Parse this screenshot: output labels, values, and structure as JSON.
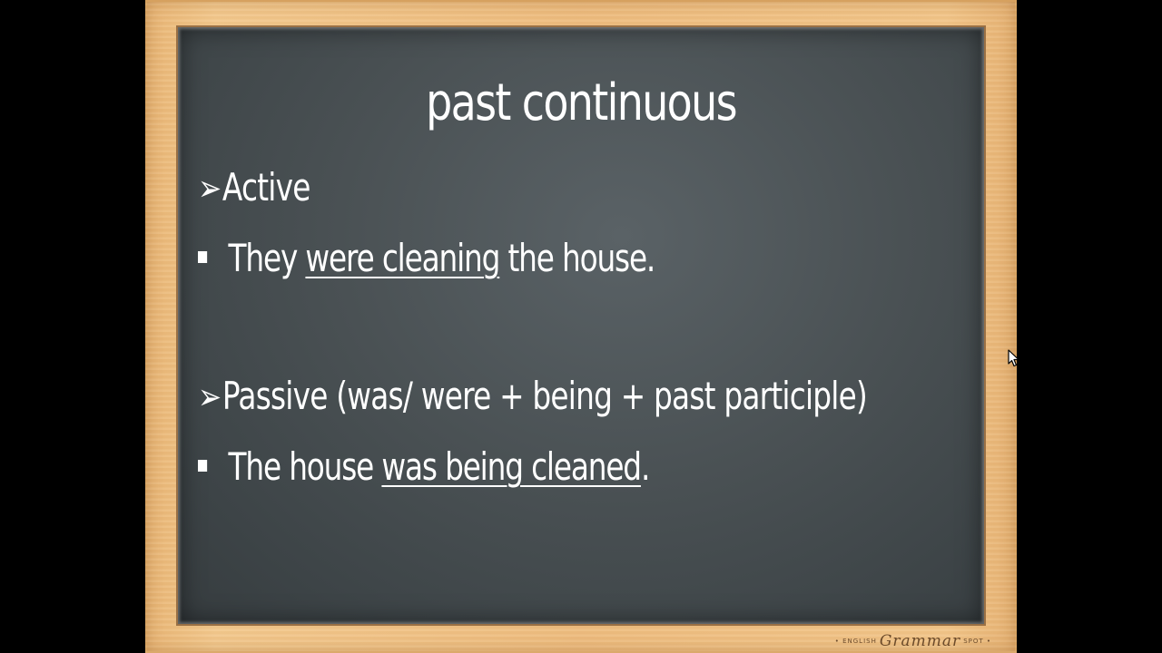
{
  "slide": {
    "title": "past continuous",
    "active": {
      "arrow": "➢",
      "heading": "Active",
      "example": {
        "before": "They ",
        "underlined": "were cleaning",
        "after": " the house."
      }
    },
    "passive": {
      "arrow": "➢",
      "heading": "Passive (was/ were + being + past participle)",
      "example": {
        "before": "The house ",
        "underlined": "was being cleaned",
        "after": "."
      }
    }
  },
  "logo": {
    "left_text": "• ENGLISH",
    "main_text": "Grammar",
    "right_text": "SPOT •"
  },
  "colors": {
    "background": "#000000",
    "frame_wood": "#eebd80",
    "chalkboard": "#4a5154",
    "chalk_text": "#ffffff"
  },
  "icons": {
    "heading_marker": "arrow-bullet-icon",
    "item_marker": "square-bullet-icon",
    "cursor": "mouse-pointer-icon"
  }
}
